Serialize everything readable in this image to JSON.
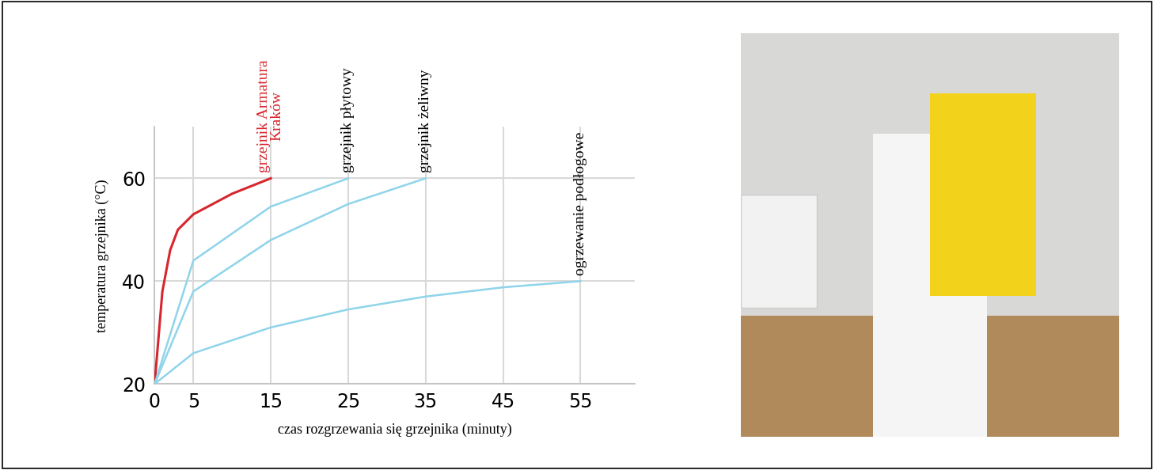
{
  "chart_data": {
    "type": "line",
    "x_label": "czas rozgrzewania się grzejnika (minuty)",
    "y_label": "temperatura grzejnika (°C)",
    "xlim": [
      0,
      62
    ],
    "xticks": [
      0,
      5,
      15,
      25,
      35,
      45,
      55
    ],
    "ylim": [
      20,
      70
    ],
    "yticks": [
      20,
      40,
      60
    ],
    "grid": true,
    "series": [
      {
        "name": "grzejnik Armatura\nKraków",
        "color": "#d7262e",
        "x": [
          0,
          1,
          2,
          3,
          5,
          10,
          15
        ],
        "values": [
          20,
          38,
          46,
          50,
          53,
          57,
          60
        ]
      },
      {
        "name": "grzejnik płytowy",
        "color": "#8fd4ea",
        "x": [
          0,
          5,
          15,
          25
        ],
        "values": [
          20,
          44,
          54.5,
          60
        ]
      },
      {
        "name": "grzejnik żeliwny",
        "color": "#8fd4ea",
        "x": [
          0,
          5,
          15,
          25,
          35
        ],
        "values": [
          20,
          38,
          48,
          55,
          60
        ]
      },
      {
        "name": "ogrzewanie podłogowe",
        "color": "#8fd4ea",
        "x": [
          0,
          5,
          15,
          25,
          35,
          45,
          55
        ],
        "values": [
          20,
          26,
          31,
          34.5,
          37,
          38.8,
          40
        ]
      }
    ]
  }
}
